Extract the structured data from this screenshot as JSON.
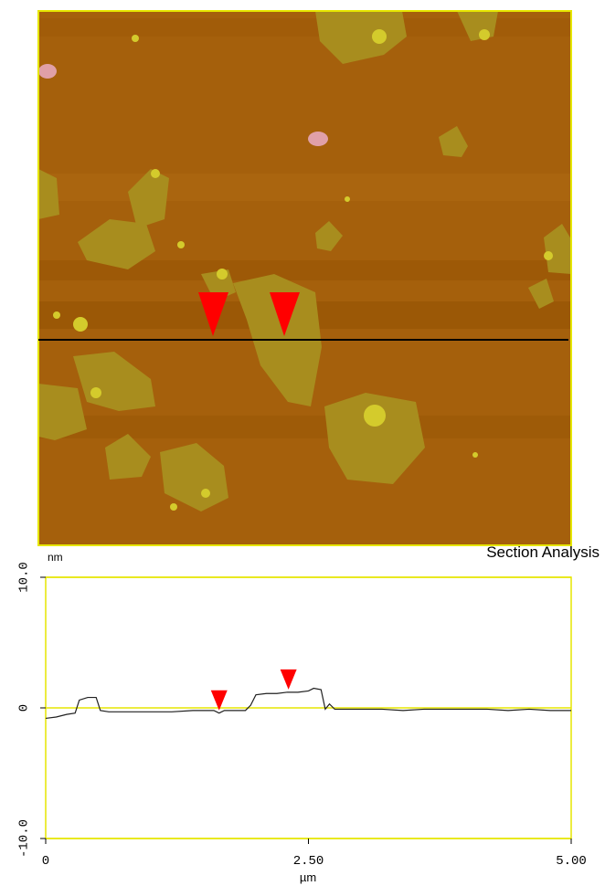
{
  "chart_data": {
    "type": "line",
    "title": "Section Analysis",
    "y_label": "nm",
    "x_label": "µm",
    "xlim": [
      0,
      5
    ],
    "ylim": [
      -10,
      10
    ],
    "xticks": [
      0,
      {
        "value": 2.5,
        "label": "2.50"
      },
      {
        "value": 5,
        "label": "5.00"
      }
    ],
    "yticks": [
      {
        "value": 10,
        "label": "10.0"
      },
      0,
      {
        "value": -10,
        "label": "-10.0"
      }
    ],
    "grid": true,
    "grid_color": "#e6e600",
    "frame_color": "#e6e600",
    "cursors": [
      1.65,
      2.31
    ],
    "cursor_color": "#ff0000",
    "x": [
      0,
      0.1,
      0.2,
      0.28,
      0.32,
      0.4,
      0.48,
      0.52,
      0.6,
      0.8,
      1.0,
      1.2,
      1.4,
      1.6,
      1.65,
      1.7,
      1.8,
      1.9,
      1.95,
      2.0,
      2.1,
      2.2,
      2.3,
      2.4,
      2.5,
      2.55,
      2.62,
      2.66,
      2.7,
      2.75,
      2.8,
      3.0,
      3.2,
      3.4,
      3.6,
      3.8,
      4.0,
      4.2,
      4.4,
      4.6,
      4.8,
      5.0
    ],
    "series": [
      {
        "color": "#202020",
        "values": [
          -0.8,
          -0.7,
          -0.5,
          -0.4,
          0.6,
          0.8,
          0.8,
          -0.2,
          -0.3,
          -0.3,
          -0.3,
          -0.3,
          -0.2,
          -0.2,
          -0.4,
          -0.2,
          -0.2,
          -0.2,
          0.2,
          1.0,
          1.1,
          1.1,
          1.2,
          1.2,
          1.3,
          1.5,
          1.4,
          -0.1,
          0.3,
          -0.1,
          -0.1,
          -0.1,
          -0.1,
          -0.2,
          -0.1,
          -0.1,
          -0.1,
          -0.1,
          -0.2,
          -0.1,
          -0.2,
          -0.2
        ]
      }
    ]
  }
}
